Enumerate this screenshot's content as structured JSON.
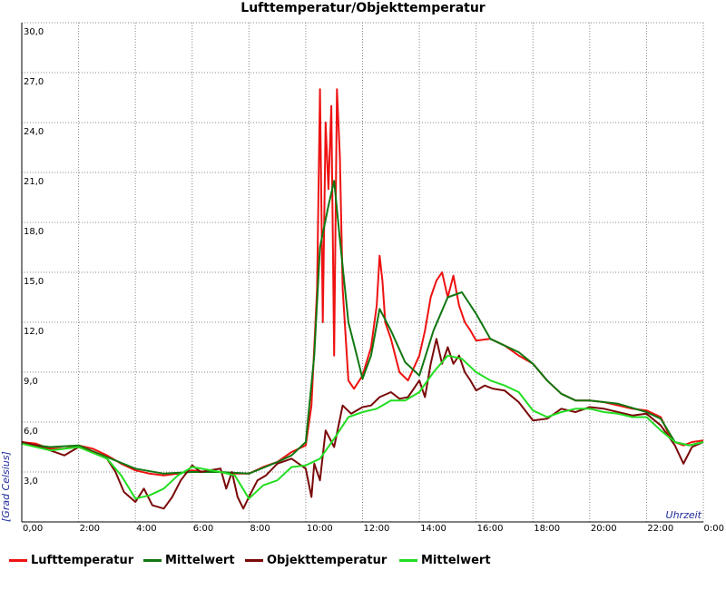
{
  "chart_data": {
    "type": "line",
    "title": "Lufttemperatur/Objekttemperatur",
    "xlabel": "Uhrzeit",
    "ylabel": "[Grad Celsius]",
    "xlim": [
      0,
      24
    ],
    "ylim": [
      0,
      30
    ],
    "grid": true,
    "legend_position": "bottom",
    "x_ticks": [
      "0,00",
      "2:00",
      "4:00",
      "6:00",
      "8:00",
      "10:00",
      "12:00",
      "14:00",
      "16:00",
      "18:00",
      "20:00",
      "22:00",
      "0:00"
    ],
    "y_ticks": [
      "3,0",
      "6,0",
      "9,0",
      "12,0",
      "15,0",
      "18,0",
      "21,0",
      "24,0",
      "27,0",
      "30,0"
    ],
    "series": [
      {
        "name": "Lufttemperatur",
        "color": "#ee1111",
        "x": [
          0,
          0.5,
          1,
          1.5,
          2,
          2.5,
          3,
          3.5,
          4,
          4.5,
          5,
          5.5,
          6,
          6.5,
          7,
          7.5,
          8,
          8.5,
          9,
          9.5,
          10,
          10.2,
          10.4,
          10.5,
          10.6,
          10.7,
          10.8,
          10.9,
          11,
          11.1,
          11.2,
          11.3,
          11.5,
          11.7,
          12,
          12.3,
          12.5,
          12.6,
          12.7,
          12.8,
          13,
          13.3,
          13.6,
          14,
          14.2,
          14.4,
          14.6,
          14.8,
          15,
          15.2,
          15.4,
          15.6,
          15.8,
          16,
          16.5,
          17,
          17.5,
          18,
          18.5,
          19,
          19.5,
          20,
          20.5,
          21,
          21.5,
          22,
          22.5,
          22.8,
          23,
          23.3,
          23.6,
          24
        ],
        "values": [
          4.8,
          4.7,
          4.4,
          4.4,
          4.6,
          4.4,
          4.0,
          3.5,
          3.1,
          2.9,
          2.8,
          2.9,
          3.1,
          3.0,
          3.0,
          2.9,
          2.9,
          3.3,
          3.6,
          4.2,
          4.6,
          7.0,
          14.0,
          26.0,
          12.0,
          24.0,
          20.0,
          25.0,
          10.0,
          26.0,
          22.0,
          14.0,
          8.5,
          8.0,
          8.8,
          10.5,
          13.0,
          16.0,
          14.5,
          12.0,
          11.0,
          9.0,
          8.5,
          10.0,
          11.5,
          13.5,
          14.5,
          15.0,
          13.5,
          14.8,
          13.0,
          12.0,
          11.5,
          10.9,
          11.0,
          10.6,
          10.0,
          9.5,
          8.5,
          7.7,
          7.3,
          7.3,
          7.2,
          7.0,
          6.8,
          6.7,
          6.3,
          5.2,
          4.8,
          4.6,
          4.8,
          4.9
        ]
      },
      {
        "name": "Mittelwert",
        "color": "#117711",
        "x": [
          0,
          1,
          2,
          3,
          4,
          5,
          6,
          7,
          8,
          9,
          9.5,
          10,
          10.3,
          10.5,
          10.8,
          11,
          11.2,
          11.5,
          11.8,
          12,
          12.3,
          12.6,
          13,
          13.5,
          14,
          14.5,
          15,
          15.5,
          16,
          16.5,
          17,
          17.5,
          18,
          18.5,
          19,
          19.5,
          20,
          21,
          22,
          22.5,
          23,
          23.5,
          24
        ],
        "values": [
          4.7,
          4.5,
          4.6,
          3.9,
          3.2,
          2.9,
          3.0,
          3.0,
          2.9,
          3.6,
          4.0,
          4.8,
          10.0,
          16.5,
          19.0,
          20.5,
          17.0,
          12.0,
          10.0,
          8.6,
          10.0,
          12.8,
          11.5,
          9.6,
          8.8,
          11.5,
          13.5,
          13.8,
          12.5,
          11.0,
          10.6,
          10.2,
          9.5,
          8.5,
          7.7,
          7.3,
          7.3,
          7.1,
          6.6,
          6.2,
          4.8,
          4.6,
          4.8
        ]
      },
      {
        "name": "Objekttemperatur",
        "color": "#7a0a0a",
        "x": [
          0,
          0.5,
          1,
          1.5,
          2,
          2.5,
          3,
          3.3,
          3.6,
          4,
          4.3,
          4.6,
          5,
          5.3,
          5.6,
          6,
          6.3,
          6.6,
          7,
          7.2,
          7.4,
          7.6,
          7.8,
          8,
          8.3,
          8.6,
          9,
          9.5,
          10,
          10.2,
          10.3,
          10.5,
          10.7,
          11,
          11.3,
          11.6,
          12,
          12.3,
          12.6,
          13,
          13.3,
          13.6,
          14,
          14.2,
          14.4,
          14.6,
          14.8,
          15,
          15.2,
          15.4,
          15.6,
          15.8,
          16,
          16.3,
          16.6,
          17,
          17.5,
          18,
          18.5,
          19,
          19.5,
          20,
          20.5,
          21,
          21.5,
          22,
          22.5,
          23,
          23.3,
          23.6,
          24
        ],
        "values": [
          4.8,
          4.6,
          4.3,
          4.0,
          4.5,
          4.2,
          3.8,
          3.0,
          1.8,
          1.2,
          2.0,
          1.0,
          0.8,
          1.5,
          2.5,
          3.4,
          3.0,
          3.1,
          3.2,
          2.0,
          3.0,
          1.5,
          0.8,
          1.5,
          2.5,
          2.8,
          3.5,
          3.8,
          3.2,
          1.5,
          3.5,
          2.5,
          5.5,
          4.5,
          7.0,
          6.5,
          6.9,
          7.0,
          7.5,
          7.8,
          7.4,
          7.5,
          8.5,
          7.5,
          9.5,
          11.0,
          9.5,
          10.5,
          9.5,
          10.0,
          9.0,
          8.5,
          7.9,
          8.2,
          8.0,
          7.9,
          7.2,
          6.1,
          6.2,
          6.8,
          6.6,
          6.9,
          6.8,
          6.6,
          6.4,
          6.5,
          5.8,
          4.6,
          3.5,
          4.5,
          4.8
        ]
      },
      {
        "name": "Mittelwert",
        "color": "#22dd22",
        "x": [
          0,
          1,
          2,
          3,
          3.5,
          4,
          4.5,
          5,
          5.5,
          6,
          7,
          7.5,
          8,
          8.5,
          9,
          9.5,
          10,
          10.5,
          11,
          11.5,
          12,
          12.5,
          13,
          13.5,
          14,
          14.5,
          15,
          15.5,
          16,
          16.5,
          17,
          17.5,
          18,
          18.5,
          19,
          19.5,
          20,
          20.5,
          21,
          21.5,
          22,
          22.5,
          23,
          23.5,
          24
        ],
        "values": [
          4.7,
          4.3,
          4.5,
          3.8,
          2.8,
          1.4,
          1.6,
          2.0,
          2.8,
          3.3,
          3.0,
          2.8,
          1.4,
          2.2,
          2.5,
          3.3,
          3.4,
          3.8,
          5.0,
          6.3,
          6.6,
          6.8,
          7.3,
          7.3,
          7.8,
          9.0,
          10.0,
          9.8,
          9.0,
          8.5,
          8.2,
          7.8,
          6.7,
          6.3,
          6.6,
          6.8,
          6.8,
          6.6,
          6.5,
          6.3,
          6.3,
          5.5,
          4.8,
          4.6,
          4.8
        ]
      }
    ]
  }
}
